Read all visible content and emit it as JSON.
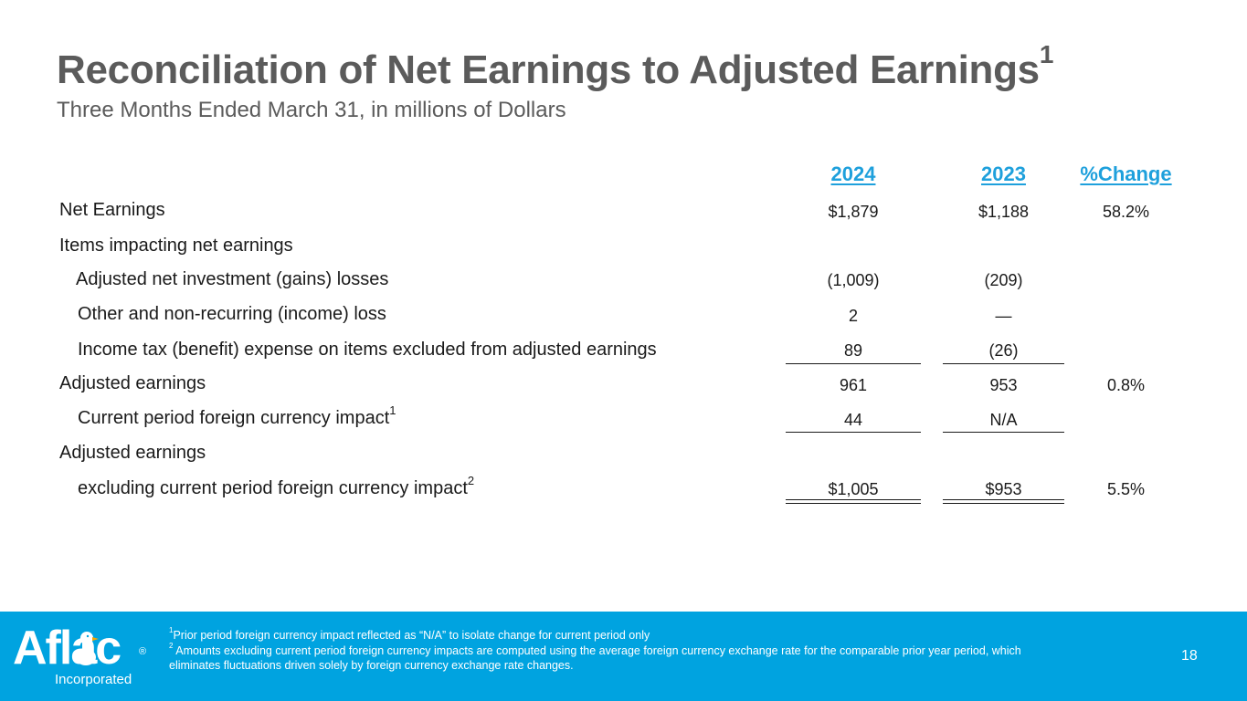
{
  "header": {
    "title": "Reconciliation of Net Earnings to Adjusted Earnings",
    "title_sup": "1",
    "subtitle": "Three Months Ended March 31, in millions of Dollars"
  },
  "table": {
    "columns": [
      "2024",
      "2023",
      "%Change"
    ],
    "rows": [
      {
        "label": "Net Earnings",
        "v2024": "$1,879",
        "v2023": "$1,188",
        "pct": "58.2%"
      },
      {
        "label": "Items impacting net earnings",
        "v2024": "",
        "v2023": "",
        "pct": ""
      },
      {
        "label": "Adjusted net investment (gains) losses",
        "v2024": "(1,009)",
        "v2023": "(209)",
        "pct": ""
      },
      {
        "label": "Other and non-recurring (income) loss",
        "v2024": "2",
        "v2023": "—",
        "pct": ""
      },
      {
        "label": "Income tax (benefit) expense on items excluded from adjusted earnings",
        "v2024": "89",
        "v2023": "(26)",
        "pct": ""
      },
      {
        "label": "Adjusted earnings",
        "v2024": "961",
        "v2023": "953",
        "pct": "0.8%"
      },
      {
        "label": "Current period foreign currency impact",
        "label_sup": "1",
        "v2024": "44",
        "v2023": "N/A",
        "pct": ""
      },
      {
        "label": "Adjusted earnings",
        "v2024": "",
        "v2023": "",
        "pct": ""
      },
      {
        "label": "excluding current period foreign currency impact",
        "label_sup": "2",
        "v2024": "$1,005",
        "v2023": "$953",
        "pct": "5.5%"
      }
    ]
  },
  "footer": {
    "logo_text": "Aflac",
    "logo_reg": "®",
    "logo_sub": "Incorporated",
    "footnote1_sup": "1",
    "footnote1": "Prior period foreign currency impact reflected as “N/A” to isolate change for current period only",
    "footnote2_sup": "2",
    "footnote2": " Amounts excluding current period foreign currency impacts are computed using the average foreign currency exchange rate for the comparable prior year period, which eliminates fluctuations driven solely by foreign currency exchange rate changes.",
    "page_number": "18"
  },
  "colors": {
    "accent": "#1ea0dc",
    "footer_bg": "#00a3e0",
    "title": "#5b5b5b"
  }
}
